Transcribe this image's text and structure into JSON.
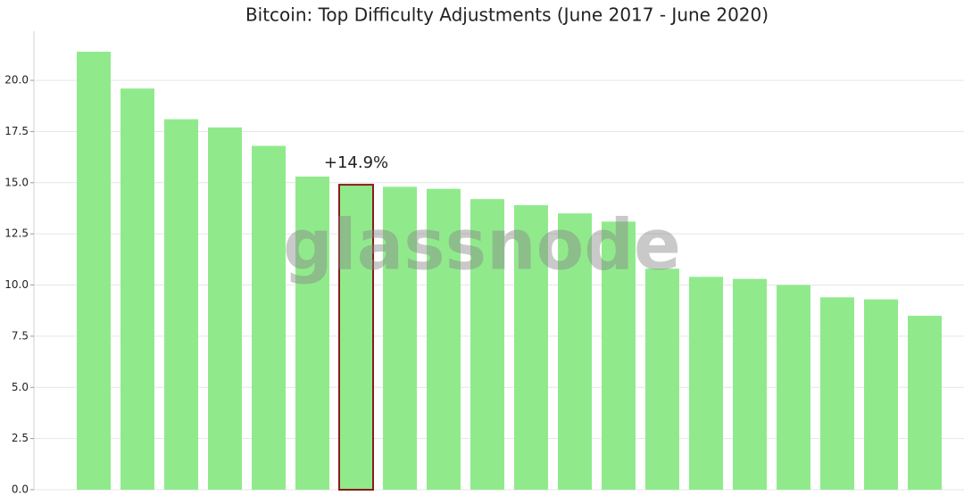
{
  "chart_data": {
    "type": "bar",
    "title": "Bitcoin: Top Difficulty Adjustments (June 2017 - June 2020)",
    "watermark": "glassnode",
    "categories": [
      null,
      null,
      null,
      null,
      null,
      null,
      null,
      null,
      null,
      null,
      null,
      null,
      null,
      null,
      null,
      null,
      null,
      null,
      null,
      null
    ],
    "values": [
      21.4,
      19.6,
      18.1,
      17.7,
      16.8,
      15.3,
      14.9,
      14.8,
      14.7,
      14.2,
      13.9,
      13.5,
      13.1,
      10.8,
      10.4,
      10.3,
      10.0,
      9.4,
      9.3,
      8.5
    ],
    "value_labels": [
      null,
      null,
      null,
      null,
      null,
      null,
      "+14.9%",
      null,
      null,
      null,
      null,
      null,
      null,
      null,
      null,
      null,
      null,
      null,
      null,
      null
    ],
    "color": "#90ea8c",
    "highlight_color": "#8b1a1a",
    "ylim": [
      0,
      22.4
    ],
    "yticks": [
      {
        "value": 0,
        "label": "0.0"
      },
      2.5,
      {
        "value": 5,
        "label": "5.0"
      },
      7.5,
      {
        "value": 10,
        "label": "10.0"
      },
      12.5,
      {
        "value": 15,
        "label": "15.0"
      },
      17.5,
      {
        "value": 20,
        "label": "20.0"
      }
    ],
    "grid": true
  }
}
